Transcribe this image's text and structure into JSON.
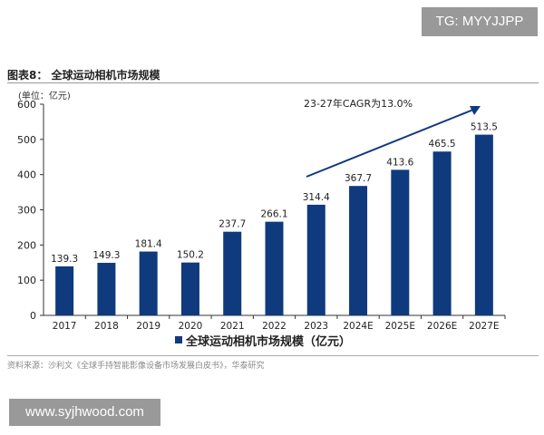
{
  "watermark_top": "TG: MYYJJPP",
  "watermark_bottom": "www.syjhwood.com",
  "chart_data": {
    "type": "bar",
    "title": "图表8： 全球运动相机市场规模",
    "unit_label": "(单位：亿元)",
    "categories": [
      "2017",
      "2018",
      "2019",
      "2020",
      "2021",
      "2022",
      "2023",
      "2024E",
      "2025E",
      "2026E",
      "2027E"
    ],
    "series": [
      {
        "name": "全球运动相机市场规模（亿元）",
        "values": [
          139.3,
          149.3,
          181.4,
          150.2,
          237.7,
          266.1,
          314.4,
          367.7,
          413.6,
          465.5,
          513.5
        ]
      }
    ],
    "ylim": [
      0,
      600
    ],
    "yticks": [
      0,
      100,
      200,
      300,
      400,
      500,
      600
    ],
    "annotation": "23-27年CAGR为13.0%",
    "legend_position": "bottom",
    "grid": false,
    "bar_color": "#0f3a7d",
    "source": "资料来源：沙利文《全球手持智能影像设备市场发展白皮书》，华泰研究"
  }
}
